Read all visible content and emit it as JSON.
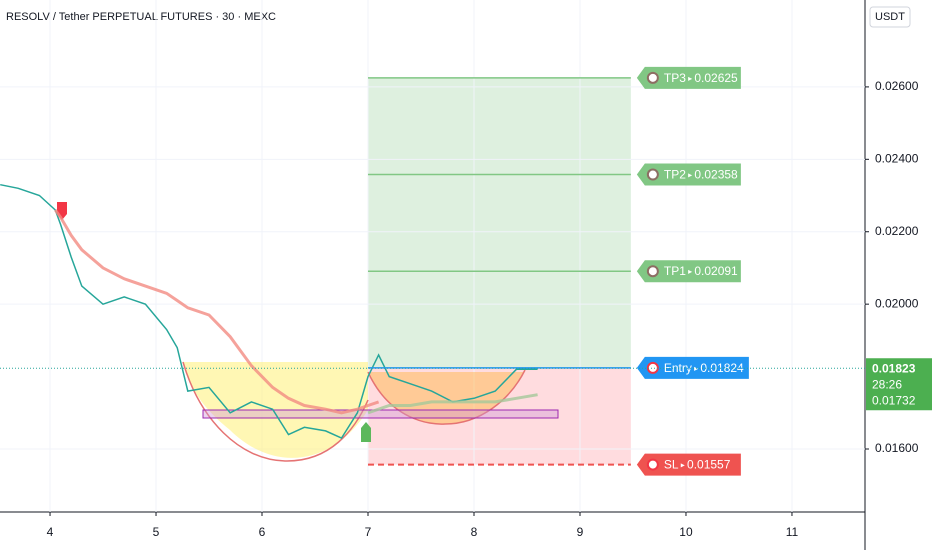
{
  "chart_data": {
    "type": "line",
    "title": "RESOLV / Tether PERPETUAL FUTURES · 30 · MEXC",
    "currency": "USDT",
    "x": [
      3.53,
      3.7,
      3.9,
      4.05,
      4.1,
      4.2,
      4.3,
      4.5,
      4.7,
      4.9,
      5.1,
      5.2,
      5.3,
      5.5,
      5.7,
      5.9,
      6.1,
      6.25,
      6.4,
      6.6,
      6.75,
      6.9,
      7.0,
      7.1,
      7.2,
      7.4,
      7.6,
      7.8,
      8.0,
      8.2,
      8.4,
      8.6
    ],
    "series": [
      {
        "color": "#26a69a",
        "values": [
          0.0233,
          0.0232,
          0.023,
          0.0226,
          0.0222,
          0.0213,
          0.0205,
          0.02,
          0.0202,
          0.02,
          0.0193,
          0.0188,
          0.0176,
          0.0177,
          0.017,
          0.0173,
          0.0171,
          0.0164,
          0.0166,
          0.0165,
          0.0163,
          0.017,
          0.018,
          0.0186,
          0.018,
          0.0178,
          0.0176,
          0.0173,
          0.0174,
          0.0176,
          0.0182,
          0.0182
        ]
      },
      {
        "color": "#f28b82",
        "values": [
          null,
          null,
          null,
          0.0226,
          0.0224,
          0.0219,
          0.0215,
          0.021,
          0.0207,
          0.0205,
          0.0203,
          0.0201,
          0.0199,
          0.0197,
          0.0191,
          0.0183,
          0.0177,
          0.0174,
          0.0172,
          0.0171,
          0.017,
          0.0171,
          0.0172,
          0.0173,
          null,
          null,
          null,
          null,
          null,
          null,
          null,
          null
        ]
      },
      {
        "color": "#a5c89a",
        "values": [
          null,
          null,
          null,
          null,
          null,
          null,
          null,
          null,
          null,
          null,
          null,
          null,
          null,
          null,
          null,
          null,
          null,
          null,
          null,
          null,
          null,
          null,
          0.017,
          0.0171,
          0.0172,
          0.0172,
          0.0173,
          0.0173,
          0.0173,
          0.0173,
          0.0174,
          0.0175
        ]
      }
    ],
    "xlim": [
      3.528,
      11.689
    ],
    "ylim": [
      0.01426,
      0.0284
    ],
    "xticks": [
      4,
      5,
      6,
      7,
      8,
      9,
      10,
      11
    ],
    "yticks": [
      {
        "value": 0.016,
        "label": "0.01600"
      },
      {
        "value": 0.02,
        "label": "0.02000"
      },
      {
        "value": 0.022,
        "label": "0.02200"
      },
      {
        "value": 0.024,
        "label": "0.02400"
      },
      {
        "value": 0.026,
        "label": "0.02600"
      }
    ],
    "grid": true,
    "position": {
      "start": 7,
      "end": 9.48
    },
    "levels": [
      {
        "label": "TP3",
        "value": 0.02625,
        "color": "#81c784"
      },
      {
        "label": "TP2",
        "value": 0.02358,
        "color": "#81c784"
      },
      {
        "label": "TP1",
        "value": 0.02091,
        "color": "#81c784"
      },
      {
        "label": "Entry",
        "value": 0.01824,
        "color": "#2196f3"
      },
      {
        "label": "SL",
        "value": 0.01557,
        "color": "#ef5350"
      }
    ],
    "price_label": {
      "last": 0.01823,
      "countdown": "28:26",
      "other": 0.01732
    }
  }
}
